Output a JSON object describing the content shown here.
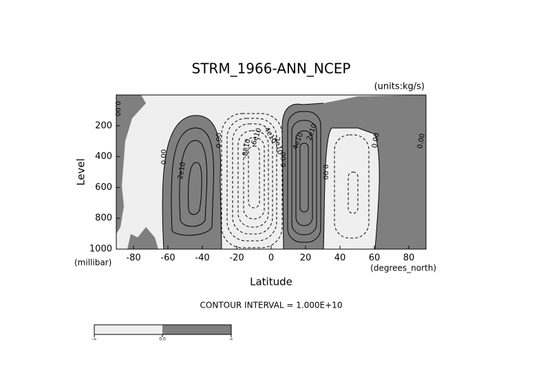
{
  "chart_data": {
    "type": "contour",
    "title": "STRM_1966-ANN_NCEP",
    "units": "(units:kg/s)",
    "y_label": "Level",
    "y_unit": "(millibar)",
    "x_label": "Latitude",
    "x_unit": "(degrees_north)",
    "xlim": [
      -90,
      90
    ],
    "xticks": [
      -80,
      -60,
      -40,
      -20,
      0,
      20,
      40,
      60,
      80
    ],
    "ylim": [
      1000,
      0
    ],
    "yticks": [
      200,
      400,
      600,
      800,
      1000
    ],
    "contour_interval": "CONTOUR INTERVAL = 1.000E+10",
    "contour_labels": [
      "0.00",
      "0.00",
      "2e10",
      "0.00",
      "-8e10",
      "-6e10",
      "-4e10",
      "-2e10",
      "0.00",
      "4e10",
      "2e10",
      "0.00",
      "0.00",
      "0.00"
    ],
    "colorbar_labels": [
      "-∞",
      "0.0",
      "∞"
    ],
    "colors": {
      "positive": "#7f7f7f",
      "negative": "#efefef"
    }
  }
}
